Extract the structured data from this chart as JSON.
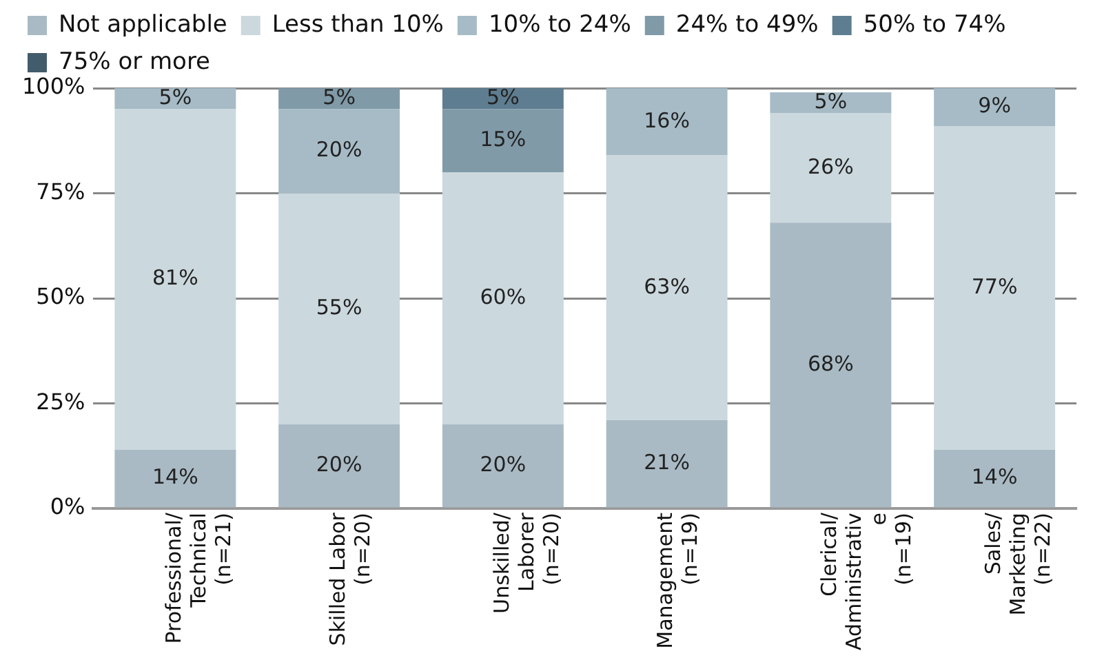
{
  "chart_data": {
    "type": "bar",
    "stacked": true,
    "categories": [
      "Professional/\nTechnical\n(n=21)",
      "Skilled Labor\n(n=20)",
      "Unskilled/\nLaborer\n(n=20)",
      "Management\n(n=19)",
      "Clerical/\nAdministrativ\ne\n(n=19)",
      "Sales/\nMarketing\n(n=22)"
    ],
    "series": [
      {
        "name": "Not applicable",
        "color": "#a9bac4",
        "values": [
          14,
          20,
          20,
          21,
          68,
          14
        ],
        "value_labels": [
          "14%",
          "20%",
          "20%",
          "21%",
          "68%",
          "14%"
        ]
      },
      {
        "name": "Less than 10%",
        "color": "#cbd8de",
        "values": [
          81,
          55,
          60,
          63,
          26,
          77
        ],
        "value_labels": [
          "81%",
          "55%",
          "60%",
          "63%",
          "26%",
          "77%"
        ]
      },
      {
        "name": "10% to 24%",
        "color": "#a6bbc6",
        "values": [
          5,
          20,
          0,
          16,
          5,
          9
        ],
        "value_labels": [
          "5%",
          "20%",
          null,
          "16%",
          "5%",
          "9%"
        ]
      },
      {
        "name": "24% to 49%",
        "color": "#809aa8",
        "values": [
          0,
          5,
          15,
          0,
          0,
          0
        ],
        "value_labels": [
          null,
          "5%",
          "15%",
          null,
          null,
          null
        ]
      },
      {
        "name": "50% to 74%",
        "color": "#5e7d90",
        "values": [
          0,
          0,
          5,
          0,
          0,
          0
        ],
        "value_labels": [
          null,
          null,
          "5%",
          null,
          null,
          null
        ]
      },
      {
        "name": "75% or more",
        "color": "#435c6b",
        "values": [
          0,
          0,
          0,
          0,
          0,
          0
        ],
        "value_labels": [
          null,
          null,
          null,
          null,
          null,
          null
        ]
      }
    ],
    "ylim": [
      0,
      100
    ],
    "yticks": [
      {
        "value": 0,
        "label": "0%"
      },
      {
        "value": 25,
        "label": "25%"
      },
      {
        "value": 50,
        "label": "50%"
      },
      {
        "value": 75,
        "label": "75%"
      },
      {
        "value": 100,
        "label": "100%"
      }
    ],
    "grid": "y",
    "legend": "top"
  }
}
